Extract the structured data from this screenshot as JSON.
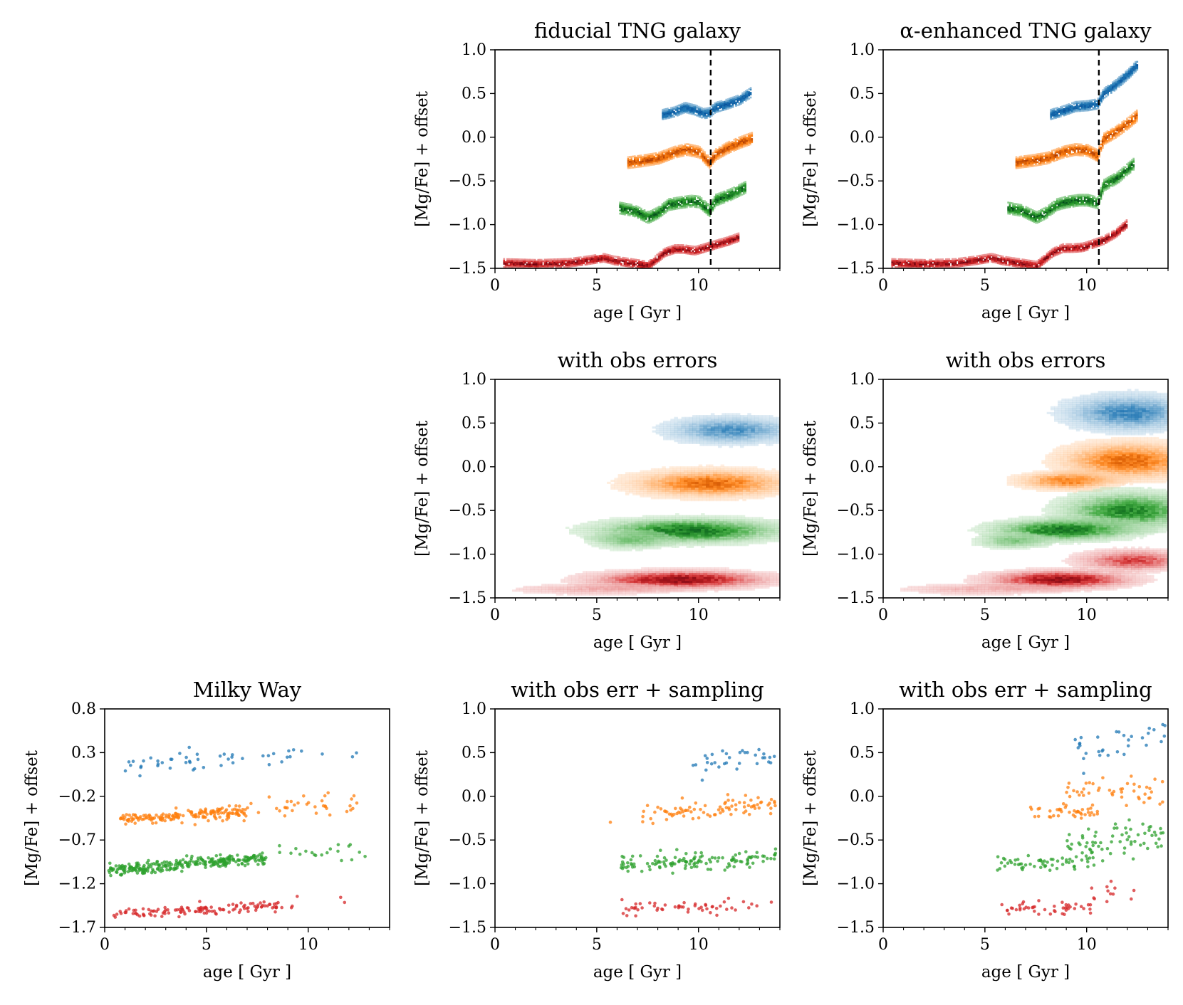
{
  "colors": {
    "blue": "#1f77b4",
    "orange": "#ff7f0e",
    "green": "#2ca02c",
    "red": "#d62728",
    "dark_blue": "#08519c",
    "dark_orange": "#a63603",
    "dark_green": "#00441b",
    "dark_red": "#67000d",
    "vline": "#000000"
  },
  "chart_data": [
    {
      "id": "p_fid",
      "type": "heatmap",
      "title": "fiducial TNG galaxy",
      "xlabel": "age [ Gyr ]",
      "ylabel": "[Mg/Fe] + offset",
      "xlim": [
        0,
        14
      ],
      "ylim": [
        -1.5,
        1.0
      ],
      "xticks": [
        "0",
        "5",
        "10"
      ],
      "xtick_values": [
        0,
        5,
        10
      ],
      "yticks": [
        "−1.5",
        "−1.0",
        "−0.5",
        "0.0",
        "0.5",
        "1.0"
      ],
      "ytick_values": [
        -1.5,
        -1.0,
        -0.5,
        0.0,
        0.5,
        1.0
      ],
      "vline": 10.6,
      "tracks": [
        {
          "color": "blue",
          "points": [
            [
              8.2,
              0.26
            ],
            [
              8.8,
              0.29
            ],
            [
              9.3,
              0.34
            ],
            [
              9.8,
              0.31
            ],
            [
              10.2,
              0.27
            ],
            [
              10.5,
              0.28
            ],
            [
              10.8,
              0.34
            ],
            [
              11.4,
              0.38
            ],
            [
              12.0,
              0.43
            ],
            [
              12.6,
              0.52
            ]
          ],
          "width": 0.07
        },
        {
          "color": "orange",
          "points": [
            [
              6.5,
              -0.29
            ],
            [
              7.2,
              -0.27
            ],
            [
              8.0,
              -0.24
            ],
            [
              8.8,
              -0.17
            ],
            [
              9.4,
              -0.14
            ],
            [
              10.0,
              -0.17
            ],
            [
              10.5,
              -0.29
            ],
            [
              10.8,
              -0.2
            ],
            [
              11.4,
              -0.12
            ],
            [
              12.0,
              -0.06
            ],
            [
              12.6,
              -0.01
            ]
          ],
          "width": 0.08
        },
        {
          "color": "green",
          "points": [
            [
              6.1,
              -0.81
            ],
            [
              6.8,
              -0.84
            ],
            [
              7.5,
              -0.92
            ],
            [
              8.0,
              -0.86
            ],
            [
              8.5,
              -0.77
            ],
            [
              9.0,
              -0.75
            ],
            [
              9.6,
              -0.73
            ],
            [
              10.0,
              -0.74
            ],
            [
              10.5,
              -0.84
            ],
            [
              10.8,
              -0.72
            ],
            [
              11.5,
              -0.66
            ],
            [
              12.3,
              -0.57
            ]
          ],
          "width": 0.08
        },
        {
          "color": "red",
          "points": [
            [
              0.4,
              -1.44
            ],
            [
              2.0,
              -1.45
            ],
            [
              3.5,
              -1.44
            ],
            [
              4.5,
              -1.41
            ],
            [
              5.3,
              -1.38
            ],
            [
              5.8,
              -1.41
            ],
            [
              7.5,
              -1.47
            ],
            [
              8.3,
              -1.32
            ],
            [
              8.8,
              -1.28
            ],
            [
              9.2,
              -1.28
            ],
            [
              9.8,
              -1.3
            ],
            [
              10.8,
              -1.23
            ],
            [
              11.4,
              -1.19
            ],
            [
              12.0,
              -1.14
            ]
          ],
          "width": 0.06
        }
      ]
    },
    {
      "id": "p_alpha",
      "type": "heatmap",
      "title": "α-enhanced TNG galaxy",
      "xlabel": "age [ Gyr ]",
      "ylabel": "[Mg/Fe] + offset",
      "xlim": [
        0,
        14
      ],
      "ylim": [
        -1.5,
        1.0
      ],
      "xticks": [
        "0",
        "5",
        "10"
      ],
      "xtick_values": [
        0,
        5,
        10
      ],
      "yticks": [
        "−1.5",
        "−1.0",
        "−0.5",
        "0.0",
        "0.5",
        "1.0"
      ],
      "ytick_values": [
        -1.5,
        -1.0,
        -0.5,
        0.0,
        0.5,
        1.0
      ],
      "vline": 10.6,
      "tracks": [
        {
          "color": "blue",
          "points": [
            [
              8.2,
              0.26
            ],
            [
              8.8,
              0.3
            ],
            [
              9.4,
              0.35
            ],
            [
              10.0,
              0.36
            ],
            [
              10.5,
              0.38
            ],
            [
              10.8,
              0.5
            ],
            [
              11.4,
              0.6
            ],
            [
              12.0,
              0.72
            ],
            [
              12.5,
              0.84
            ]
          ],
          "width": 0.07
        },
        {
          "color": "orange",
          "points": [
            [
              6.5,
              -0.29
            ],
            [
              7.2,
              -0.27
            ],
            [
              8.0,
              -0.24
            ],
            [
              8.8,
              -0.17
            ],
            [
              9.4,
              -0.14
            ],
            [
              10.0,
              -0.15
            ],
            [
              10.5,
              -0.21
            ],
            [
              10.8,
              -0.02
            ],
            [
              11.4,
              0.06
            ],
            [
              12.0,
              0.16
            ],
            [
              12.5,
              0.26
            ]
          ],
          "width": 0.08
        },
        {
          "color": "green",
          "points": [
            [
              6.1,
              -0.81
            ],
            [
              6.8,
              -0.84
            ],
            [
              7.5,
              -0.92
            ],
            [
              8.0,
              -0.86
            ],
            [
              8.5,
              -0.77
            ],
            [
              9.0,
              -0.74
            ],
            [
              9.6,
              -0.72
            ],
            [
              10.0,
              -0.72
            ],
            [
              10.5,
              -0.75
            ],
            [
              10.8,
              -0.55
            ],
            [
              11.5,
              -0.46
            ],
            [
              12.3,
              -0.3
            ]
          ],
          "width": 0.08
        },
        {
          "color": "red",
          "points": [
            [
              0.4,
              -1.44
            ],
            [
              2.0,
              -1.45
            ],
            [
              3.5,
              -1.44
            ],
            [
              4.5,
              -1.41
            ],
            [
              5.3,
              -1.38
            ],
            [
              5.8,
              -1.41
            ],
            [
              7.5,
              -1.47
            ],
            [
              8.3,
              -1.32
            ],
            [
              8.8,
              -1.27
            ],
            [
              9.3,
              -1.27
            ],
            [
              9.8,
              -1.26
            ],
            [
              10.8,
              -1.18
            ],
            [
              11.4,
              -1.1
            ],
            [
              12.0,
              -0.98
            ]
          ],
          "width": 0.06
        }
      ]
    },
    {
      "id": "p_fid_err",
      "type": "heatmap",
      "title": "with obs errors",
      "xlabel": "age [ Gyr ]",
      "ylabel": "[Mg/Fe] + offset",
      "xlim": [
        0,
        14
      ],
      "ylim": [
        -1.5,
        1.0
      ],
      "xticks": [
        "0",
        "5",
        "10"
      ],
      "xtick_values": [
        0,
        5,
        10
      ],
      "yticks": [
        "−1.5",
        "−1.0",
        "−0.5",
        "0.0",
        "0.5",
        "1.0"
      ],
      "ytick_values": [
        -1.5,
        -1.0,
        -0.5,
        0.0,
        0.5,
        1.0
      ],
      "blobs": [
        {
          "color": "blue",
          "cx": 11.5,
          "cy": 0.42,
          "sx": 1.8,
          "sy": 0.09,
          "peak": 0.55
        },
        {
          "color": "orange",
          "cx": 10.5,
          "cy": -0.19,
          "sx": 2.2,
          "sy": 0.09,
          "peak": 0.75
        },
        {
          "color": "green",
          "cx": 9.5,
          "cy": -0.73,
          "sx": 2.6,
          "sy": 0.08,
          "peak": 0.85
        },
        {
          "color": "green",
          "cx": 6.6,
          "cy": -0.84,
          "sx": 1.2,
          "sy": 0.06,
          "peak": 0.4
        },
        {
          "color": "red",
          "cx": 9.0,
          "cy": -1.29,
          "sx": 2.5,
          "sy": 0.06,
          "peak": 0.9
        },
        {
          "color": "red",
          "cx": 5.0,
          "cy": -1.4,
          "sx": 2.5,
          "sy": 0.04,
          "peak": 0.25
        }
      ]
    },
    {
      "id": "p_alpha_err",
      "type": "heatmap",
      "title": "with obs errors",
      "xlabel": "age [ Gyr ]",
      "ylabel": "[Mg/Fe] + offset",
      "xlim": [
        0,
        14
      ],
      "ylim": [
        -1.5,
        1.0
      ],
      "xticks": [
        "0",
        "5",
        "10"
      ],
      "xtick_values": [
        0,
        5,
        10
      ],
      "yticks": [
        "−1.5",
        "−1.0",
        "−0.5",
        "0.0",
        "0.5",
        "1.0"
      ],
      "ytick_values": [
        -1.5,
        -1.0,
        -0.5,
        0.0,
        0.5,
        1.0
      ],
      "blobs": [
        {
          "color": "blue",
          "cx": 12.0,
          "cy": 0.62,
          "sx": 1.8,
          "sy": 0.12,
          "peak": 0.6
        },
        {
          "color": "orange",
          "cx": 12.0,
          "cy": 0.07,
          "sx": 1.9,
          "sy": 0.12,
          "peak": 0.75
        },
        {
          "color": "orange",
          "cx": 9.0,
          "cy": -0.16,
          "sx": 1.4,
          "sy": 0.06,
          "peak": 0.65
        },
        {
          "color": "green",
          "cx": 12.0,
          "cy": -0.5,
          "sx": 1.9,
          "sy": 0.12,
          "peak": 0.75
        },
        {
          "color": "green",
          "cx": 8.8,
          "cy": -0.72,
          "sx": 2.0,
          "sy": 0.07,
          "peak": 0.85
        },
        {
          "color": "green",
          "cx": 6.3,
          "cy": -0.85,
          "sx": 1.1,
          "sy": 0.05,
          "peak": 0.4
        },
        {
          "color": "red",
          "cx": 12.2,
          "cy": -1.07,
          "sx": 1.6,
          "sy": 0.07,
          "peak": 0.6
        },
        {
          "color": "red",
          "cx": 8.6,
          "cy": -1.29,
          "sx": 2.0,
          "sy": 0.06,
          "peak": 0.9
        },
        {
          "color": "red",
          "cx": 5.0,
          "cy": -1.4,
          "sx": 2.5,
          "sy": 0.04,
          "peak": 0.25
        }
      ]
    },
    {
      "id": "p_mw",
      "type": "scatter",
      "title": "Milky Way",
      "xlabel": "age [ Gyr ]",
      "ylabel": "[Mg/Fe] + offset",
      "xlim": [
        0,
        14
      ],
      "ylim": [
        -1.7,
        0.8
      ],
      "xticks": [
        "0",
        "5",
        "10"
      ],
      "xtick_values": [
        0,
        5,
        10
      ],
      "yticks": [
        "−1.7",
        "−1.2",
        "−0.7",
        "−0.2",
        "0.3",
        "0.8"
      ],
      "ytick_values": [
        -1.7,
        -1.2,
        -0.7,
        -0.2,
        0.3,
        0.8
      ],
      "series": [
        {
          "color": "blue",
          "clusters": [
            {
              "x": [
                1.0,
                10.0
              ],
              "y0": 0.17,
              "slope": 0.012,
              "sy": 0.05,
              "n": 45
            },
            {
              "x": [
                10.5,
                12.5
              ],
              "y0": 0.29,
              "slope": 0.0,
              "sy": 0.03,
              "n": 3
            }
          ]
        },
        {
          "color": "orange",
          "clusters": [
            {
              "x": [
                0.7,
                7.0
              ],
              "y0": -0.46,
              "slope": 0.012,
              "sy": 0.035,
              "n": 170
            },
            {
              "x": [
                7.0,
                12.5
              ],
              "y0": -0.36,
              "slope": 0.015,
              "sy": 0.06,
              "n": 35
            }
          ]
        },
        {
          "color": "green",
          "clusters": [
            {
              "x": [
                0.2,
                8.0
              ],
              "y0": -1.05,
              "slope": 0.02,
              "sy": 0.035,
              "n": 280
            },
            {
              "x": [
                8.0,
                12.8
              ],
              "y0": -0.87,
              "slope": 0.01,
              "sy": 0.05,
              "n": 20
            }
          ]
        },
        {
          "color": "red",
          "clusters": [
            {
              "x": [
                0.2,
                8.5
              ],
              "y0": -1.55,
              "slope": 0.012,
              "sy": 0.03,
              "n": 120
            },
            {
              "x": [
                8.5,
                11.8
              ],
              "y0": -1.43,
              "slope": 0.0,
              "sy": 0.04,
              "n": 7
            }
          ]
        }
      ]
    },
    {
      "id": "p_fid_samp",
      "type": "scatter",
      "title": "with obs err + sampling",
      "xlabel": "age [ Gyr ]",
      "ylabel": "[Mg/Fe] + offset",
      "xlim": [
        0,
        14
      ],
      "ylim": [
        -1.5,
        1.0
      ],
      "xticks": [
        "0",
        "5",
        "10"
      ],
      "xtick_values": [
        0,
        5,
        10
      ],
      "yticks": [
        "−1.5",
        "−1.0",
        "−0.5",
        "0.0",
        "0.5",
        "1.0"
      ],
      "ytick_values": [
        -1.5,
        -1.0,
        -0.5,
        0.0,
        0.5,
        1.0
      ],
      "series": [
        {
          "color": "blue",
          "clusters": [
            {
              "x": [
                9.7,
                13.8
              ],
              "y0": 0.42,
              "slope": 0.0,
              "sy": 0.07,
              "n": 32
            }
          ]
        },
        {
          "color": "orange",
          "clusters": [
            {
              "x": [
                7.0,
                13.8
              ],
              "y0": -0.22,
              "slope": 0.015,
              "sy": 0.06,
              "n": 85
            },
            {
              "x": [
                5.4,
                5.8
              ],
              "y0": -0.29,
              "slope": 0.0,
              "sy": 0.01,
              "n": 1
            }
          ]
        },
        {
          "color": "green",
          "clusters": [
            {
              "x": [
                6.2,
                13.8
              ],
              "y0": -0.78,
              "slope": 0.01,
              "sy": 0.05,
              "n": 130
            }
          ]
        },
        {
          "color": "red",
          "clusters": [
            {
              "x": [
                6.2,
                13.6
              ],
              "y0": -1.29,
              "slope": 0.008,
              "sy": 0.04,
              "n": 55
            }
          ]
        }
      ]
    },
    {
      "id": "p_alpha_samp",
      "type": "scatter",
      "title": "with obs err + sampling",
      "xlabel": "age [ Gyr ]",
      "ylabel": "[Mg/Fe] + offset",
      "xlim": [
        0,
        14
      ],
      "ylim": [
        -1.5,
        1.0
      ],
      "xticks": [
        "0",
        "5",
        "10"
      ],
      "xtick_values": [
        0,
        5,
        10
      ],
      "yticks": [
        "−1.5",
        "−1.0",
        "−0.5",
        "0.0",
        "0.5",
        "1.0"
      ],
      "ytick_values": [
        -1.5,
        -1.0,
        -0.5,
        0.0,
        0.5,
        1.0
      ],
      "series": [
        {
          "color": "blue",
          "clusters": [
            {
              "x": [
                8.8,
                13.9
              ],
              "y0": 0.45,
              "slope": 0.06,
              "sy": 0.09,
              "n": 32
            }
          ]
        },
        {
          "color": "orange",
          "clusters": [
            {
              "x": [
                7.2,
                10.8
              ],
              "y0": -0.18,
              "slope": 0.0,
              "sy": 0.04,
              "n": 40
            },
            {
              "x": [
                8.8,
                13.8
              ],
              "y0": 0.05,
              "slope": 0.0,
              "sy": 0.08,
              "n": 45
            }
          ]
        },
        {
          "color": "green",
          "clusters": [
            {
              "x": [
                5.6,
                10.5
              ],
              "y0": -0.78,
              "slope": 0.01,
              "sy": 0.05,
              "n": 60
            },
            {
              "x": [
                9.0,
                13.9
              ],
              "y0": -0.55,
              "slope": 0.02,
              "sy": 0.1,
              "n": 65
            }
          ]
        },
        {
          "color": "red",
          "clusters": [
            {
              "x": [
                5.8,
                10.2
              ],
              "y0": -1.28,
              "slope": 0.0,
              "sy": 0.04,
              "n": 45
            },
            {
              "x": [
                10.0,
                12.5
              ],
              "y0": -1.1,
              "slope": 0.0,
              "sy": 0.04,
              "n": 12
            }
          ]
        }
      ]
    }
  ]
}
